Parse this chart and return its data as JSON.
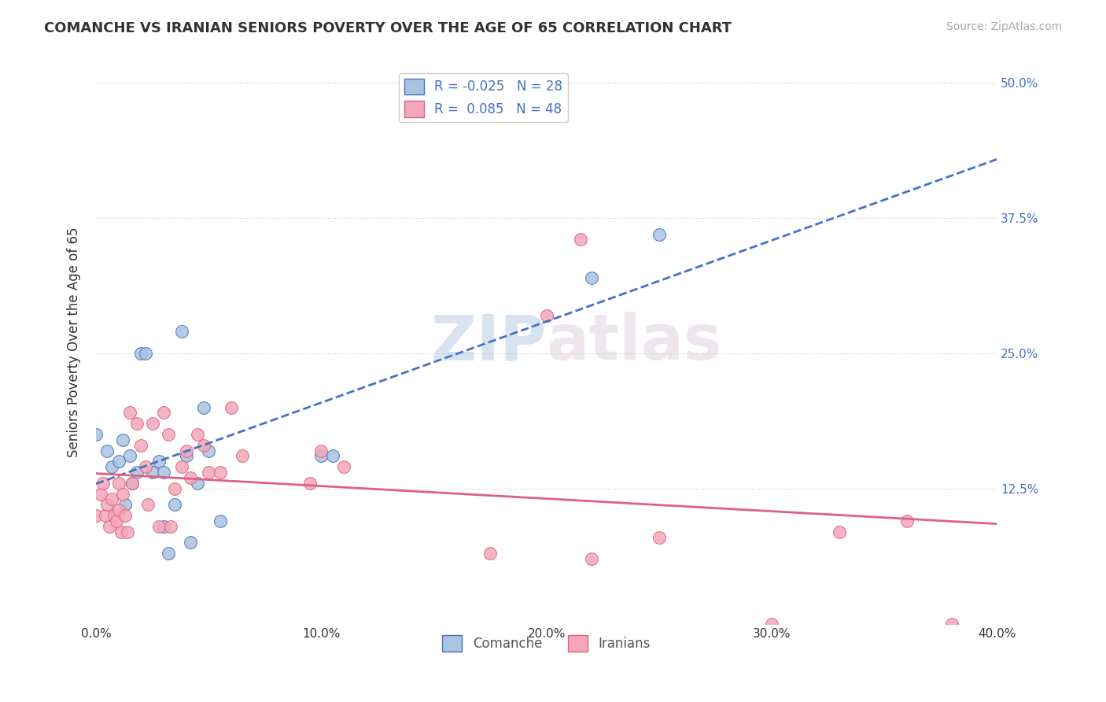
{
  "title": "COMANCHE VS IRANIAN SENIORS POVERTY OVER THE AGE OF 65 CORRELATION CHART",
  "source": "Source: ZipAtlas.com",
  "ylabel": "Seniors Poverty Over the Age of 65",
  "xlim": [
    0.0,
    0.4
  ],
  "ylim": [
    0.0,
    0.52
  ],
  "yticks": [
    0.0,
    0.125,
    0.25,
    0.375,
    0.5
  ],
  "xticks": [
    0.0,
    0.1,
    0.2,
    0.3,
    0.4
  ],
  "xtick_labels": [
    "0.0%",
    "10.0%",
    "20.0%",
    "30.0%",
    "40.0%"
  ],
  "right_tick_labels": [
    "",
    "12.5%",
    "25.0%",
    "37.5%",
    "50.0%"
  ],
  "grid_color": "#cccccc",
  "background_color": "#ffffff",
  "comanche_color": "#a8c4e0",
  "iranian_color": "#f4a7b9",
  "comanche_line_color": "#4472c4",
  "iranian_line_color": "#e06080",
  "comanche_R": -0.025,
  "comanche_N": 28,
  "iranian_R": 0.085,
  "iranian_N": 48,
  "watermark_zip": "ZIP",
  "watermark_atlas": "atlas",
  "comanche_x": [
    0.0,
    0.005,
    0.007,
    0.01,
    0.012,
    0.013,
    0.015,
    0.016,
    0.018,
    0.02,
    0.022,
    0.025,
    0.028,
    0.03,
    0.03,
    0.032,
    0.035,
    0.038,
    0.04,
    0.042,
    0.045,
    0.048,
    0.05,
    0.055,
    0.1,
    0.105,
    0.22,
    0.25
  ],
  "comanche_y": [
    0.175,
    0.16,
    0.145,
    0.15,
    0.17,
    0.11,
    0.155,
    0.13,
    0.14,
    0.25,
    0.25,
    0.14,
    0.15,
    0.09,
    0.14,
    0.065,
    0.11,
    0.27,
    0.155,
    0.075,
    0.13,
    0.2,
    0.16,
    0.095,
    0.155,
    0.155,
    0.32,
    0.36
  ],
  "iranian_x": [
    0.0,
    0.002,
    0.003,
    0.004,
    0.005,
    0.006,
    0.007,
    0.008,
    0.009,
    0.01,
    0.01,
    0.011,
    0.012,
    0.013,
    0.014,
    0.015,
    0.016,
    0.018,
    0.02,
    0.022,
    0.023,
    0.025,
    0.028,
    0.03,
    0.032,
    0.033,
    0.035,
    0.038,
    0.04,
    0.042,
    0.045,
    0.048,
    0.05,
    0.055,
    0.06,
    0.065,
    0.095,
    0.1,
    0.11,
    0.175,
    0.2,
    0.215,
    0.22,
    0.25,
    0.3,
    0.33,
    0.36,
    0.38
  ],
  "iranian_y": [
    0.1,
    0.12,
    0.13,
    0.1,
    0.11,
    0.09,
    0.115,
    0.1,
    0.095,
    0.13,
    0.105,
    0.085,
    0.12,
    0.1,
    0.085,
    0.195,
    0.13,
    0.185,
    0.165,
    0.145,
    0.11,
    0.185,
    0.09,
    0.195,
    0.175,
    0.09,
    0.125,
    0.145,
    0.16,
    0.135,
    0.175,
    0.165,
    0.14,
    0.14,
    0.2,
    0.155,
    0.13,
    0.16,
    0.145,
    0.065,
    0.285,
    0.355,
    0.06,
    0.08,
    0.0,
    0.085,
    0.095,
    0.0
  ]
}
